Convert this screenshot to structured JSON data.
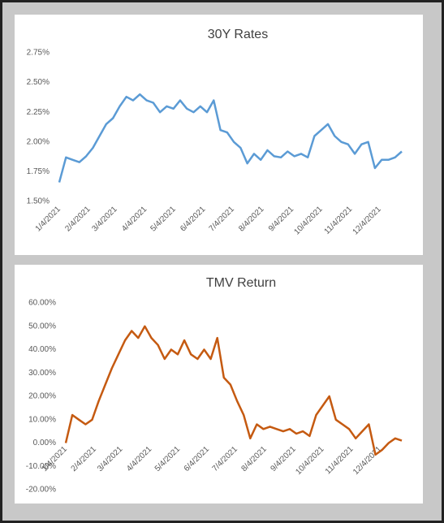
{
  "chart_data": [
    {
      "type": "line",
      "title": "30Y Rates",
      "x": [
        "1/4/2021",
        "1/11/2021",
        "1/18/2021",
        "1/25/2021",
        "2/1/2021",
        "2/8/2021",
        "2/15/2021",
        "2/22/2021",
        "3/1/2021",
        "3/8/2021",
        "3/15/2021",
        "3/22/2021",
        "3/29/2021",
        "4/5/2021",
        "4/12/2021",
        "4/19/2021",
        "4/26/2021",
        "5/3/2021",
        "5/10/2021",
        "5/17/2021",
        "5/24/2021",
        "5/31/2021",
        "6/7/2021",
        "6/14/2021",
        "6/21/2021",
        "6/28/2021",
        "7/5/2021",
        "7/12/2021",
        "7/19/2021",
        "7/26/2021",
        "8/2/2021",
        "8/9/2021",
        "8/16/2021",
        "8/23/2021",
        "8/30/2021",
        "9/6/2021",
        "9/13/2021",
        "9/20/2021",
        "9/27/2021",
        "10/4/2021",
        "10/11/2021",
        "10/18/2021",
        "10/25/2021",
        "11/1/2021",
        "11/8/2021",
        "11/15/2021",
        "11/22/2021",
        "11/29/2021",
        "12/6/2021",
        "12/13/2021",
        "12/20/2021",
        "12/27/2021"
      ],
      "series": [
        {
          "color": "#5b9bd5",
          "values": [
            1.66,
            1.87,
            1.85,
            1.83,
            1.88,
            1.95,
            2.05,
            2.15,
            2.2,
            2.3,
            2.38,
            2.35,
            2.4,
            2.35,
            2.33,
            2.25,
            2.3,
            2.28,
            2.35,
            2.28,
            2.25,
            2.3,
            2.25,
            2.35,
            2.1,
            2.08,
            2.0,
            1.95,
            1.82,
            1.9,
            1.85,
            1.93,
            1.88,
            1.87,
            1.92,
            1.88,
            1.9,
            1.87,
            2.05,
            2.1,
            2.15,
            2.05,
            2.0,
            1.98,
            1.9,
            1.98,
            2.0,
            1.78,
            1.85,
            1.85,
            1.87,
            1.92
          ]
        }
      ],
      "ylim": [
        1.5,
        2.75
      ],
      "yticks": [
        {
          "value": 1.5,
          "label": "1.50%"
        },
        {
          "value": 1.75,
          "label": "1.75%"
        },
        {
          "value": 2.0,
          "label": "2.00%"
        },
        {
          "value": 2.25,
          "label": "2.25%"
        },
        {
          "value": 2.5,
          "label": "2.50%"
        },
        {
          "value": 2.75,
          "label": "2.75%"
        }
      ],
      "xticks": [
        "1/4/2021",
        "2/4/2021",
        "3/4/2021",
        "4/4/2021",
        "5/4/2021",
        "6/4/2021",
        "7/4/2021",
        "8/4/2021",
        "9/4/2021",
        "10/4/2021",
        "11/4/2021",
        "12/4/2021"
      ],
      "grid": false
    },
    {
      "type": "line",
      "title": "TMV Return",
      "x": [
        "1/4/2021",
        "1/11/2021",
        "1/18/2021",
        "1/25/2021",
        "2/1/2021",
        "2/8/2021",
        "2/15/2021",
        "2/22/2021",
        "3/1/2021",
        "3/8/2021",
        "3/15/2021",
        "3/22/2021",
        "3/29/2021",
        "4/5/2021",
        "4/12/2021",
        "4/19/2021",
        "4/26/2021",
        "5/3/2021",
        "5/10/2021",
        "5/17/2021",
        "5/24/2021",
        "5/31/2021",
        "6/7/2021",
        "6/14/2021",
        "6/21/2021",
        "6/28/2021",
        "7/5/2021",
        "7/12/2021",
        "7/19/2021",
        "7/26/2021",
        "8/2/2021",
        "8/9/2021",
        "8/16/2021",
        "8/23/2021",
        "8/30/2021",
        "9/6/2021",
        "9/13/2021",
        "9/20/2021",
        "9/27/2021",
        "10/4/2021",
        "10/11/2021",
        "10/18/2021",
        "10/25/2021",
        "11/1/2021",
        "11/8/2021",
        "11/15/2021",
        "11/22/2021",
        "11/29/2021",
        "12/6/2021",
        "12/13/2021",
        "12/20/2021",
        "12/27/2021"
      ],
      "series": [
        {
          "color": "#c55a11",
          "values": [
            0,
            12,
            10,
            8,
            10,
            18,
            25,
            32,
            38,
            44,
            48,
            45,
            50,
            45,
            42,
            36,
            40,
            38,
            44,
            38,
            36,
            40,
            36,
            45,
            28,
            25,
            18,
            12,
            2,
            8,
            6,
            7,
            6,
            5,
            6,
            4,
            5,
            3,
            12,
            16,
            20,
            10,
            8,
            6,
            2,
            5,
            8,
            -5,
            -3,
            0,
            2,
            1
          ]
        }
      ],
      "ylim": [
        -20,
        60
      ],
      "yticks": [
        {
          "value": -20,
          "label": "-20.00%"
        },
        {
          "value": -10,
          "label": "-10.00%"
        },
        {
          "value": 0,
          "label": "0.00%"
        },
        {
          "value": 10,
          "label": "10.00%"
        },
        {
          "value": 20,
          "label": "20.00%"
        },
        {
          "value": 30,
          "label": "30.00%"
        },
        {
          "value": 40,
          "label": "40.00%"
        },
        {
          "value": 50,
          "label": "50.00%"
        },
        {
          "value": 60,
          "label": "60.00%"
        }
      ],
      "xticks": [
        "1/4/2021",
        "2/4/2021",
        "3/4/2021",
        "4/4/2021",
        "5/4/2021",
        "6/4/2021",
        "7/4/2021",
        "8/4/2021",
        "9/4/2021",
        "10/4/2021",
        "11/4/2021",
        "12/4/2021"
      ],
      "grid": false
    }
  ]
}
